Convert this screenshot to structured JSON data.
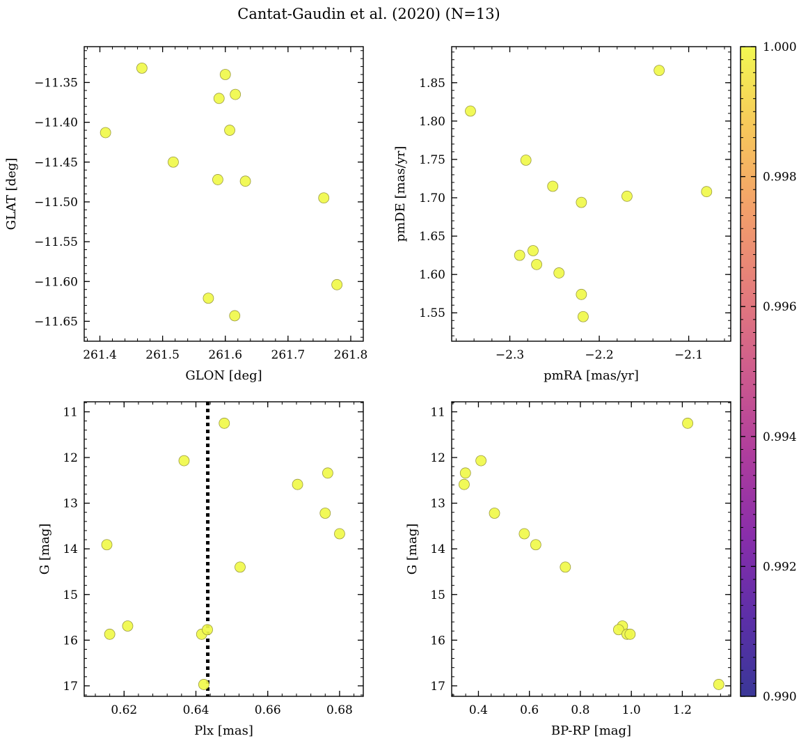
{
  "figure": {
    "title": "Cantat-Gaudin et al. (2020) (N=13)"
  },
  "colorbar": {
    "min": 0.99,
    "max": 1.0,
    "ticks": [
      "0.990",
      "0.992",
      "0.994",
      "0.996",
      "0.998",
      "1.000"
    ],
    "colormap": "plasma"
  },
  "chart_data": [
    {
      "type": "scatter",
      "xlabel": "GLON [deg]",
      "ylabel": "GLAT [deg]",
      "xlim": [
        261.375,
        261.82
      ],
      "ylim": [
        -11.675,
        -11.305
      ],
      "y_inverted": false,
      "xticks": [
        261.4,
        261.5,
        261.6,
        261.7,
        261.8
      ],
      "xtick_labels": [
        "261.4",
        "261.5",
        "261.6",
        "261.7",
        "261.8"
      ],
      "yticks": [
        -11.65,
        -11.6,
        -11.55,
        -11.5,
        -11.45,
        -11.4,
        -11.35
      ],
      "ytick_labels": [
        "−11.65",
        "−11.60",
        "−11.55",
        "−11.50",
        "−11.45",
        "−11.40",
        "−11.35"
      ],
      "points": [
        {
          "x": 261.467,
          "y": -11.332
        },
        {
          "x": 261.409,
          "y": -11.413
        },
        {
          "x": 261.517,
          "y": -11.45
        },
        {
          "x": 261.6,
          "y": -11.34
        },
        {
          "x": 261.59,
          "y": -11.37
        },
        {
          "x": 261.616,
          "y": -11.365
        },
        {
          "x": 261.607,
          "y": -11.41
        },
        {
          "x": 261.588,
          "y": -11.472
        },
        {
          "x": 261.632,
          "y": -11.474
        },
        {
          "x": 261.757,
          "y": -11.495
        },
        {
          "x": 261.778,
          "y": -11.604
        },
        {
          "x": 261.573,
          "y": -11.621
        },
        {
          "x": 261.615,
          "y": -11.643
        }
      ]
    },
    {
      "type": "scatter",
      "xlabel": "pmRA [mas/yr]",
      "ylabel": "pmDE [mas/yr]",
      "xlim": [
        -2.365,
        -2.053
      ],
      "ylim": [
        1.513,
        1.897
      ],
      "y_inverted": false,
      "xticks": [
        -2.3,
        -2.2,
        -2.1
      ],
      "xtick_labels": [
        "−2.3",
        "−2.2",
        "−2.1"
      ],
      "yticks": [
        1.55,
        1.6,
        1.65,
        1.7,
        1.75,
        1.8,
        1.85
      ],
      "ytick_labels": [
        "1.55",
        "1.60",
        "1.65",
        "1.70",
        "1.75",
        "1.80",
        "1.85"
      ],
      "points": [
        {
          "x": -2.344,
          "y": 1.813
        },
        {
          "x": -2.133,
          "y": 1.866
        },
        {
          "x": -2.282,
          "y": 1.749
        },
        {
          "x": -2.252,
          "y": 1.715
        },
        {
          "x": -2.22,
          "y": 1.694
        },
        {
          "x": -2.169,
          "y": 1.702
        },
        {
          "x": -2.08,
          "y": 1.708
        },
        {
          "x": -2.289,
          "y": 1.625
        },
        {
          "x": -2.274,
          "y": 1.631
        },
        {
          "x": -2.27,
          "y": 1.613
        },
        {
          "x": -2.245,
          "y": 1.602
        },
        {
          "x": -2.22,
          "y": 1.574
        },
        {
          "x": -2.218,
          "y": 1.545
        }
      ]
    },
    {
      "type": "scatter",
      "xlabel": "Plx [mas]",
      "ylabel": "G [mag]",
      "xlim": [
        0.6089,
        0.6866
      ],
      "ylim": [
        17.23,
        10.78
      ],
      "y_inverted": true,
      "xticks": [
        0.62,
        0.64,
        0.66,
        0.68
      ],
      "xtick_labels": [
        "0.62",
        "0.64",
        "0.66",
        "0.68"
      ],
      "yticks": [
        11,
        12,
        13,
        14,
        15,
        16,
        17
      ],
      "ytick_labels": [
        "11",
        "12",
        "13",
        "14",
        "15",
        "16",
        "17"
      ],
      "vline": {
        "x": 0.6433,
        "style": "dotted"
      },
      "points": [
        {
          "x": 0.6479,
          "y": 11.25
        },
        {
          "x": 0.6367,
          "y": 12.07
        },
        {
          "x": 0.6683,
          "y": 12.59
        },
        {
          "x": 0.6767,
          "y": 12.34
        },
        {
          "x": 0.676,
          "y": 13.22
        },
        {
          "x": 0.68,
          "y": 13.67
        },
        {
          "x": 0.6152,
          "y": 13.91
        },
        {
          "x": 0.6523,
          "y": 14.4
        },
        {
          "x": 0.621,
          "y": 15.69
        },
        {
          "x": 0.616,
          "y": 15.87
        },
        {
          "x": 0.6416,
          "y": 15.87
        },
        {
          "x": 0.6432,
          "y": 15.77
        },
        {
          "x": 0.6422,
          "y": 16.97
        }
      ]
    },
    {
      "type": "scatter",
      "xlabel": "BP-RP [mag]",
      "ylabel": "G [mag]",
      "xlim": [
        0.295,
        1.39
      ],
      "ylim": [
        17.23,
        10.78
      ],
      "y_inverted": true,
      "xticks": [
        0.4,
        0.6,
        0.8,
        1.0,
        1.2
      ],
      "xtick_labels": [
        "0.4",
        "0.6",
        "0.8",
        "1.0",
        "1.2"
      ],
      "yticks": [
        11,
        12,
        13,
        14,
        15,
        16,
        17
      ],
      "ytick_labels": [
        "11",
        "12",
        "13",
        "14",
        "15",
        "16",
        "17"
      ],
      "points": [
        {
          "x": 1.221,
          "y": 11.25
        },
        {
          "x": 0.41,
          "y": 12.07
        },
        {
          "x": 0.349,
          "y": 12.34
        },
        {
          "x": 0.344,
          "y": 12.59
        },
        {
          "x": 0.463,
          "y": 13.22
        },
        {
          "x": 0.58,
          "y": 13.67
        },
        {
          "x": 0.625,
          "y": 13.91
        },
        {
          "x": 0.741,
          "y": 14.4
        },
        {
          "x": 0.965,
          "y": 15.69
        },
        {
          "x": 0.95,
          "y": 15.77
        },
        {
          "x": 0.983,
          "y": 15.87
        },
        {
          "x": 0.995,
          "y": 15.87
        },
        {
          "x": 1.343,
          "y": 16.97
        }
      ]
    }
  ],
  "marker_color": "#f0f94a",
  "marker_edge": "#9a9a40"
}
